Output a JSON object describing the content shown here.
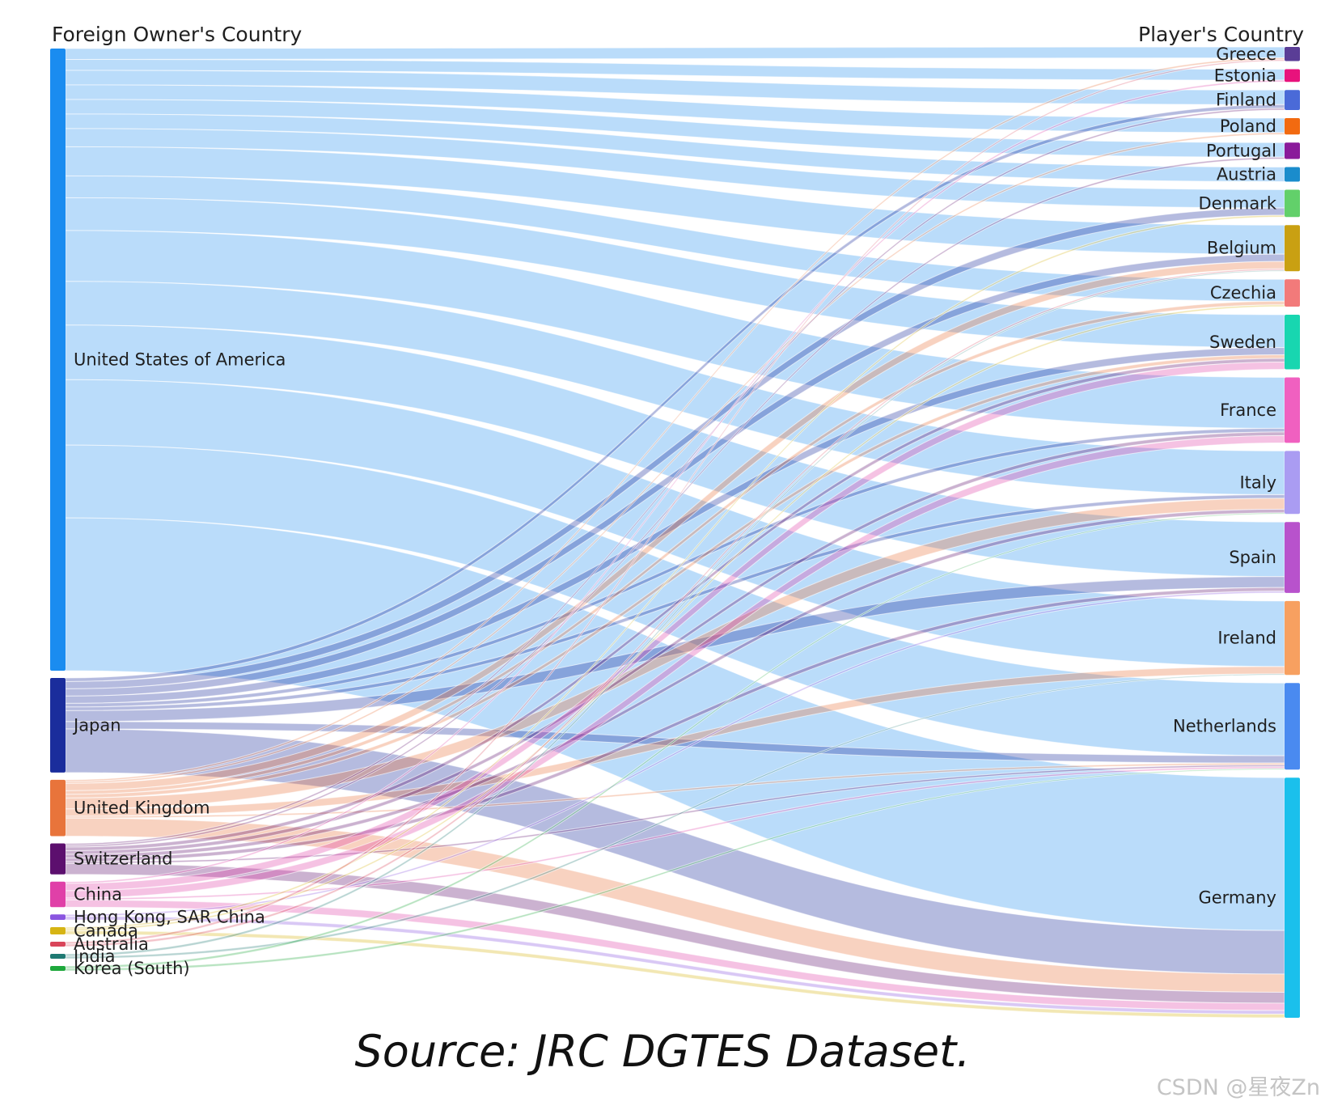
{
  "titles": {
    "left": "Foreign Owner's Country",
    "right": "Player's Country"
  },
  "caption": "Source: JRC DGTES Dataset.",
  "watermark": "CSDN @星夜Zn",
  "left_nodes": [
    {
      "name": "United States of America",
      "color": "#1a8cf0"
    },
    {
      "name": "Japan",
      "color": "#1a2d9c"
    },
    {
      "name": "United Kingdom",
      "color": "#e8743b"
    },
    {
      "name": "Switzerland",
      "color": "#5c0f6e"
    },
    {
      "name": "China",
      "color": "#e040a8"
    },
    {
      "name": "Hong Kong, SAR China",
      "color": "#8a55e0"
    },
    {
      "name": "Canada",
      "color": "#d6b414"
    },
    {
      "name": "Australia",
      "color": "#d9455a"
    },
    {
      "name": "India",
      "color": "#1f7a73"
    },
    {
      "name": "Korea (South)",
      "color": "#1ea83c"
    }
  ],
  "right_nodes": [
    {
      "name": "Greece",
      "color": "#5a3d96"
    },
    {
      "name": "Estonia",
      "color": "#e8127c"
    },
    {
      "name": "Finland",
      "color": "#4a6ad8"
    },
    {
      "name": "Poland",
      "color": "#f26a10"
    },
    {
      "name": "Portugal",
      "color": "#8a1a9a"
    },
    {
      "name": "Austria",
      "color": "#1a8ccc"
    },
    {
      "name": "Denmark",
      "color": "#62d06a"
    },
    {
      "name": "Belgium",
      "color": "#c9a012"
    },
    {
      "name": "Czechia",
      "color": "#f27a7a"
    },
    {
      "name": "Sweden",
      "color": "#18d6b0"
    },
    {
      "name": "France",
      "color": "#f060c0"
    },
    {
      "name": "Italy",
      "color": "#aa9cf2"
    },
    {
      "name": "Spain",
      "color": "#b852cc"
    },
    {
      "name": "Ireland",
      "color": "#f7a060"
    },
    {
      "name": "Netherlands",
      "color": "#4a8af0"
    },
    {
      "name": "Germany",
      "color": "#1ac0ec"
    }
  ],
  "flows": [
    {
      "source": "United States of America",
      "target": "Greece",
      "value": 3
    },
    {
      "source": "United States of America",
      "target": "Estonia",
      "value": 3
    },
    {
      "source": "United States of America",
      "target": "Finland",
      "value": 4
    },
    {
      "source": "United States of America",
      "target": "Poland",
      "value": 4
    },
    {
      "source": "United States of America",
      "target": "Portugal",
      "value": 4
    },
    {
      "source": "United States of America",
      "target": "Austria",
      "value": 4
    },
    {
      "source": "United States of America",
      "target": "Denmark",
      "value": 5
    },
    {
      "source": "United States of America",
      "target": "Belgium",
      "value": 8
    },
    {
      "source": "United States of America",
      "target": "Czechia",
      "value": 6
    },
    {
      "source": "United States of America",
      "target": "Sweden",
      "value": 9
    },
    {
      "source": "United States of America",
      "target": "France",
      "value": 14
    },
    {
      "source": "United States of America",
      "target": "Italy",
      "value": 12
    },
    {
      "source": "United States of America",
      "target": "Spain",
      "value": 15
    },
    {
      "source": "United States of America",
      "target": "Ireland",
      "value": 18
    },
    {
      "source": "United States of America",
      "target": "Netherlands",
      "value": 20
    },
    {
      "source": "United States of America",
      "target": "Germany",
      "value": 42
    },
    {
      "source": "Japan",
      "target": "Finland",
      "value": 1
    },
    {
      "source": "Japan",
      "target": "Denmark",
      "value": 2
    },
    {
      "source": "Japan",
      "target": "Belgium",
      "value": 2
    },
    {
      "source": "Japan",
      "target": "Sweden",
      "value": 2
    },
    {
      "source": "Japan",
      "target": "France",
      "value": 1
    },
    {
      "source": "Japan",
      "target": "Italy",
      "value": 1
    },
    {
      "source": "Japan",
      "target": "Spain",
      "value": 3
    },
    {
      "source": "Japan",
      "target": "Netherlands",
      "value": 2
    },
    {
      "source": "Japan",
      "target": "Germany",
      "value": 12
    },
    {
      "source": "United Kingdom",
      "target": "Greece",
      "value": 0.5
    },
    {
      "source": "United Kingdom",
      "target": "Poland",
      "value": 0.5
    },
    {
      "source": "United Kingdom",
      "target": "Belgium",
      "value": 2
    },
    {
      "source": "United Kingdom",
      "target": "Czechia",
      "value": 1
    },
    {
      "source": "United Kingdom",
      "target": "Sweden",
      "value": 1
    },
    {
      "source": "United Kingdom",
      "target": "Italy",
      "value": 3
    },
    {
      "source": "United Kingdom",
      "target": "Ireland",
      "value": 2
    },
    {
      "source": "United Kingdom",
      "target": "Netherlands",
      "value": 0.5
    },
    {
      "source": "United Kingdom",
      "target": "Germany",
      "value": 5
    },
    {
      "source": "Switzerland",
      "target": "Finland",
      "value": 0.5
    },
    {
      "source": "Switzerland",
      "target": "Portugal",
      "value": 0.5
    },
    {
      "source": "Switzerland",
      "target": "Sweden",
      "value": 1
    },
    {
      "source": "Switzerland",
      "target": "France",
      "value": 1
    },
    {
      "source": "Switzerland",
      "target": "Italy",
      "value": 1
    },
    {
      "source": "Switzerland",
      "target": "Spain",
      "value": 1
    },
    {
      "source": "Switzerland",
      "target": "Netherlands",
      "value": 0.5
    },
    {
      "source": "Switzerland",
      "target": "Germany",
      "value": 3
    },
    {
      "source": "China",
      "target": "Estonia",
      "value": 0.5
    },
    {
      "source": "China",
      "target": "Sweden",
      "value": 2
    },
    {
      "source": "China",
      "target": "France",
      "value": 2
    },
    {
      "source": "China",
      "target": "Netherlands",
      "value": 0.5
    },
    {
      "source": "China",
      "target": "Germany",
      "value": 2
    },
    {
      "source": "Hong Kong, SAR China",
      "target": "Spain",
      "value": 0.5
    },
    {
      "source": "Hong Kong, SAR China",
      "target": "Germany",
      "value": 1
    },
    {
      "source": "Canada",
      "target": "Denmark",
      "value": 0.5
    },
    {
      "source": "Canada",
      "target": "Czechia",
      "value": 0.5
    },
    {
      "source": "Canada",
      "target": "Germany",
      "value": 1
    },
    {
      "source": "Australia",
      "target": "Greece",
      "value": 0.4
    },
    {
      "source": "Australia",
      "target": "Belgium",
      "value": 0.4
    },
    {
      "source": "India",
      "target": "Belgium",
      "value": 0.3
    },
    {
      "source": "India",
      "target": "Ireland",
      "value": 0.3
    },
    {
      "source": "Korea (South)",
      "target": "Italy",
      "value": 0.3
    },
    {
      "source": "Korea (South)",
      "target": "Netherlands",
      "value": 0.3
    }
  ]
}
